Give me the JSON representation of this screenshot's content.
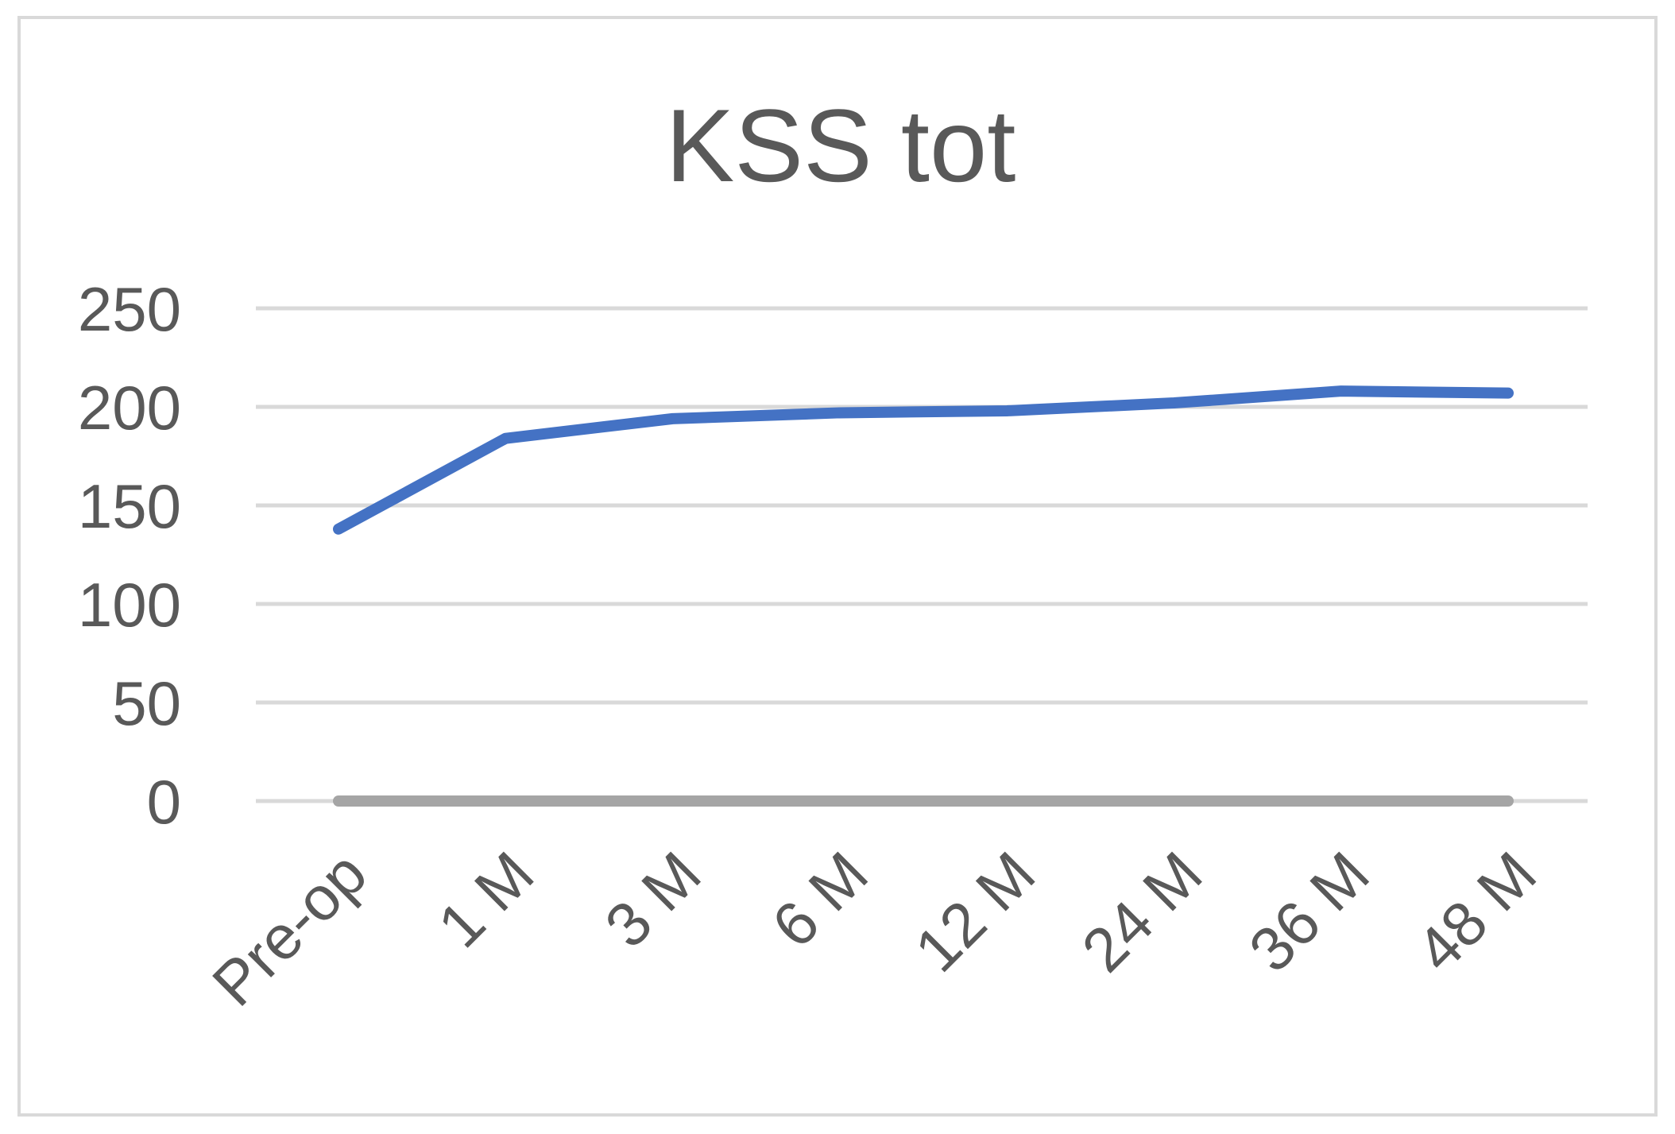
{
  "chart_data": {
    "type": "line",
    "title": "KSS tot",
    "categories": [
      "Pre-op",
      "1 M",
      "3 M",
      "6 M",
      "12 M",
      "24 M",
      "36 M",
      "48 M"
    ],
    "series": [
      {
        "name": "",
        "color": "#4472c4",
        "values": [
          138,
          184,
          194,
          197,
          198,
          202,
          208,
          207
        ]
      },
      {
        "name": "",
        "color": "#a5a5a5",
        "values": [
          0,
          0,
          0,
          0,
          0,
          0,
          0,
          0
        ]
      }
    ],
    "yticks": [
      0,
      50,
      100,
      150,
      200,
      250
    ],
    "ylim": [
      0,
      250
    ],
    "xlabel": "",
    "ylabel": "",
    "grid": true,
    "legend": "none"
  }
}
